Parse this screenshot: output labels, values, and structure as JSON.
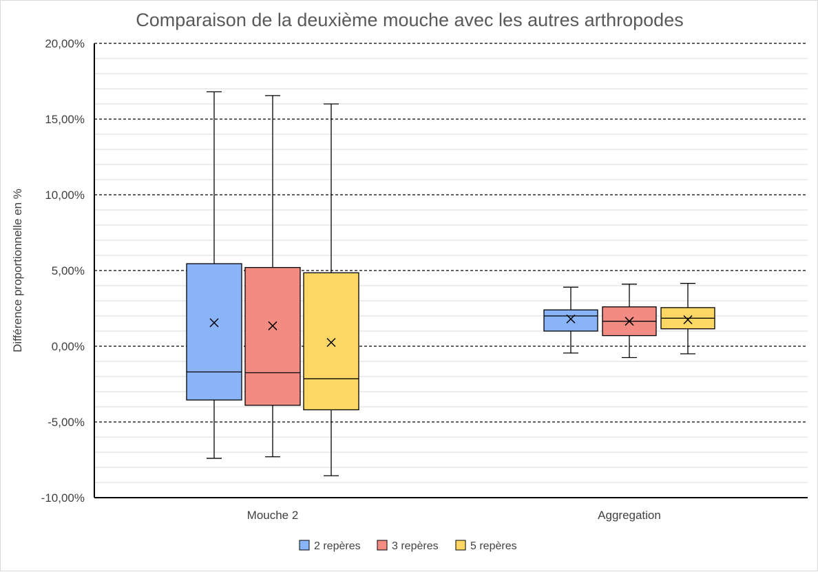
{
  "chart_data": {
    "type": "boxplot",
    "title": "Comparaison de la deuxième mouche avec les autres arthropodes",
    "xlabel": "",
    "ylabel": "Différence proportionnelle en %",
    "ylim": [
      -10,
      20
    ],
    "y_major_ticks": [
      -10,
      -5,
      0,
      5,
      10,
      15,
      20
    ],
    "y_tick_labels": [
      "-10,00%",
      "-5,00%",
      "0,00%",
      "5,00%",
      "10,00%",
      "15,00%",
      "20,00%"
    ],
    "y_minor_step": 1,
    "grid": {
      "major": "dashed",
      "minor": "solid"
    },
    "legend_position": "bottom",
    "categories": [
      "Mouche 2",
      "Aggregation"
    ],
    "series": [
      {
        "name": "2 repères",
        "color": "#8ab4f8",
        "boxes": [
          {
            "min": -7.4,
            "q1": -3.55,
            "median": -1.7,
            "q3": 5.45,
            "max": 16.8,
            "mean": 1.55
          },
          {
            "min": -0.45,
            "q1": 1.0,
            "median": 2.0,
            "q3": 2.4,
            "max": 3.9,
            "mean": 1.8
          }
        ]
      },
      {
        "name": "3 repères",
        "color": "#f28b82",
        "boxes": [
          {
            "min": -7.3,
            "q1": -3.9,
            "median": -1.75,
            "q3": 5.2,
            "max": 16.55,
            "mean": 1.35
          },
          {
            "min": -0.75,
            "q1": 0.7,
            "median": 1.65,
            "q3": 2.6,
            "max": 4.1,
            "mean": 1.65
          }
        ]
      },
      {
        "name": "5 repères",
        "color": "#fdd663",
        "boxes": [
          {
            "min": -8.55,
            "q1": -4.2,
            "median": -2.15,
            "q3": 4.85,
            "max": 16.0,
            "mean": 0.25
          },
          {
            "min": -0.5,
            "q1": 1.15,
            "median": 1.85,
            "q3": 2.55,
            "max": 4.15,
            "mean": 1.75
          }
        ]
      }
    ]
  }
}
